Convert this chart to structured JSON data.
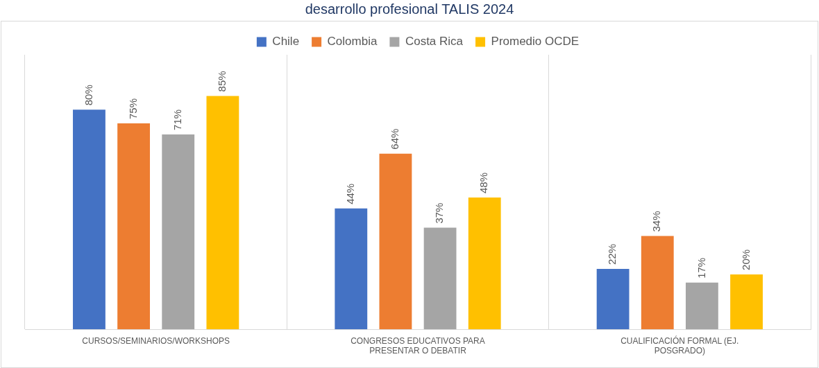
{
  "chart_data": {
    "type": "bar",
    "title": "desarrollo profesional TALIS 2024",
    "categories": [
      "CURSOS/SEMINARIOS/WORKSHOPS",
      "CONGRESOS EDUCATIVOS PARA PRESENTAR O DEBATIR",
      "CUALIFICACIÓN FORMAL (EJ. POSGRADO)"
    ],
    "series": [
      {
        "name": "Chile",
        "color": "#4472c4",
        "values": [
          80,
          44,
          22
        ],
        "value_labels": [
          "80%",
          "44%",
          "22%"
        ]
      },
      {
        "name": "Colombia",
        "color": "#ed7d31",
        "values": [
          75,
          64,
          34
        ],
        "value_labels": [
          "75%",
          "64%",
          "34%"
        ]
      },
      {
        "name": "Costa Rica",
        "color": "#a5a5a5",
        "values": [
          71,
          37,
          17
        ],
        "value_labels": [
          "71%",
          "37%",
          "17%"
        ]
      },
      {
        "name": "Promedio OCDE",
        "color": "#ffc000",
        "values": [
          85,
          48,
          20
        ],
        "value_labels": [
          "85%",
          "48%",
          "20%"
        ]
      }
    ],
    "ylim": [
      0,
      100
    ],
    "grid": "x",
    "legend": "top",
    "tick_labels": "x"
  }
}
